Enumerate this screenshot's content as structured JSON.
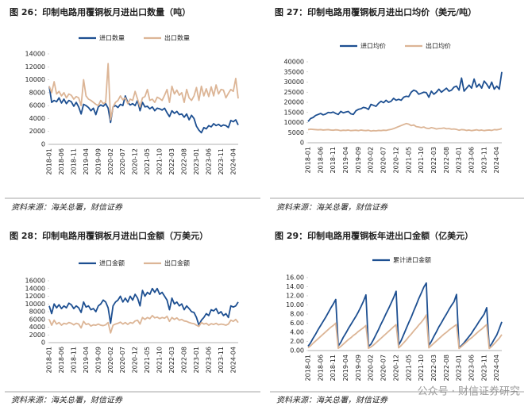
{
  "chart_data": [
    {
      "type": "line",
      "title": "图 26：印制电路用覆铜板月进出口数量（吨）",
      "source": "资料来源：海关总署，财信证券",
      "categories": [
        "2018-01",
        null,
        null,
        null,
        null,
        "2018-06",
        null,
        null,
        null,
        null,
        "2018-11",
        null,
        null,
        null,
        null,
        "2019-04",
        null,
        null,
        null,
        null,
        "2019-09",
        null,
        null,
        null,
        null,
        "2020-02",
        null,
        null,
        null,
        null,
        "2020-07",
        null,
        null,
        null,
        null,
        "2020-12",
        null,
        null,
        null,
        null,
        "2021-05",
        null,
        null,
        null,
        null,
        "2021-10",
        null,
        null,
        null,
        null,
        "2022-03",
        null,
        null,
        null,
        null,
        "2022-08",
        null,
        null,
        null,
        null,
        "2023-01",
        null,
        null,
        null,
        null,
        "2023-06",
        null,
        null,
        null,
        null,
        "2023-11",
        null,
        null,
        null,
        null,
        "2024-04",
        null,
        null
      ],
      "ylim": [
        0,
        14000
      ],
      "yticks": [
        0,
        2000,
        4000,
        6000,
        8000,
        10000,
        12000,
        14000
      ],
      "series": [
        {
          "name": "进口数量",
          "color": "#1d4f91",
          "values": [
            9000,
            6500,
            6800,
            6600,
            7200,
            6400,
            7000,
            6300,
            6800,
            6600,
            5900,
            6500,
            5800,
            4700,
            6200,
            6000,
            5700,
            5200,
            5600,
            4600,
            5800,
            6100,
            5900,
            6300,
            5600,
            3400,
            5800,
            6000,
            5700,
            6200,
            6000,
            7500,
            6500,
            6100,
            6300,
            6000,
            6800,
            5200,
            6500,
            5800,
            5900,
            5500,
            5800,
            5200,
            5600,
            5500,
            5300,
            5600,
            4900,
            4300,
            5200,
            4800,
            5100,
            4600,
            4700,
            4200,
            4700,
            3800,
            4500,
            4000,
            2800,
            2200,
            1800,
            2600,
            2400,
            2900,
            2700,
            3200,
            2900,
            3100,
            2800,
            3000,
            2900,
            2600,
            3700,
            3500,
            3800,
            3000
          ]
        },
        {
          "name": "出口数量",
          "color": "#dcb596",
          "values": [
            9000,
            8000,
            9700,
            7800,
            8200,
            7500,
            8000,
            7200,
            7800,
            7600,
            7000,
            7400,
            7200,
            6000,
            10000,
            7500,
            7000,
            6800,
            6500,
            6200,
            6000,
            6800,
            6300,
            6500,
            12500,
            3800,
            5800,
            6500,
            6800,
            7500,
            6900,
            7200,
            6300,
            7000,
            6800,
            8200,
            7000,
            5800,
            7200,
            7400,
            8500,
            6800,
            7000,
            6500,
            7300,
            7100,
            6800,
            7600,
            8500,
            6500,
            9000,
            7800,
            8400,
            7600,
            8000,
            6500,
            8500,
            7200,
            6800,
            7500,
            8800,
            6800,
            9000,
            7500,
            8600,
            7400,
            8900,
            7500,
            9200,
            7800,
            8500,
            8400,
            7200,
            7900,
            8500,
            8200,
            10200,
            7100
          ]
        }
      ]
    },
    {
      "type": "line",
      "title": "图 27：印制电路用覆铜板月进出口均价（美元/吨）",
      "source": "资料来源：海关总署，财信证券",
      "categories": [
        "2018-01",
        null,
        null,
        null,
        null,
        "2018-06",
        null,
        null,
        null,
        null,
        "2018-11",
        null,
        null,
        null,
        null,
        "2019-04",
        null,
        null,
        null,
        null,
        "2019-09",
        null,
        null,
        null,
        null,
        "2020-02",
        null,
        null,
        null,
        null,
        "2020-07",
        null,
        null,
        null,
        null,
        "2020-12",
        null,
        null,
        null,
        null,
        "2021-05",
        null,
        null,
        null,
        null,
        "2021-10",
        null,
        null,
        null,
        null,
        "2022-03",
        null,
        null,
        null,
        null,
        "2022-08",
        null,
        null,
        null,
        null,
        "2023-01",
        null,
        null,
        null,
        null,
        "2023-06",
        null,
        null,
        null,
        null,
        "2023-11",
        null,
        null,
        null,
        null,
        "2024-04",
        null,
        null
      ],
      "ylim": [
        0,
        40000
      ],
      "yticks": [
        0,
        5000,
        10000,
        15000,
        20000,
        25000,
        30000,
        35000,
        40000
      ],
      "series": [
        {
          "name": "进口均价",
          "color": "#1d4f91",
          "values": [
            10500,
            12000,
            12500,
            13500,
            14000,
            14500,
            13800,
            14200,
            15000,
            14800,
            15200,
            14500,
            14000,
            15500,
            14800,
            15200,
            15500,
            14300,
            14000,
            15800,
            16500,
            16800,
            17500,
            17200,
            16500,
            19000,
            18500,
            18000,
            19500,
            20500,
            19800,
            21000,
            20000,
            20500,
            22000,
            21000,
            21500,
            21000,
            22500,
            23000,
            22800,
            25000,
            26000,
            25500,
            24000,
            24500,
            25000,
            24800,
            22500,
            25500,
            24000,
            25000,
            26500,
            25000,
            26000,
            27000,
            25500,
            26000,
            27500,
            28000,
            26000,
            32000,
            25500,
            27000,
            28500,
            27000,
            31500,
            27500,
            29000,
            27000,
            30500,
            29000,
            27000,
            30000,
            26500,
            28000,
            26500,
            35000
          ]
        },
        {
          "name": "出口均价",
          "color": "#dcb596",
          "values": [
            6500,
            6700,
            6600,
            6500,
            6400,
            6500,
            6300,
            6400,
            6500,
            6300,
            6200,
            6400,
            6300,
            6000,
            6200,
            6100,
            6300,
            6000,
            6100,
            6200,
            6000,
            6300,
            6100,
            6000,
            6200,
            5800,
            6000,
            5900,
            6100,
            6000,
            6200,
            6100,
            6400,
            6600,
            7000,
            7500,
            8000,
            8500,
            9000,
            9500,
            9200,
            8500,
            8800,
            8000,
            7800,
            7500,
            7800,
            7200,
            7000,
            7500,
            7200,
            6800,
            7000,
            7100,
            7300,
            6900,
            7000,
            6700,
            6800,
            6600,
            6200,
            6500,
            6400,
            6100,
            6300,
            6000,
            6200,
            6400,
            6100,
            6300,
            6000,
            6200,
            6300,
            6100,
            6500,
            6400,
            6600,
            7000
          ]
        }
      ]
    },
    {
      "type": "line",
      "title": "图 28：印制电路用覆铜板月进出口金额（万美元）",
      "source": "资料来源：海关总署，财信证券",
      "categories": [
        "2018-01",
        null,
        null,
        null,
        null,
        "2018-06",
        null,
        null,
        null,
        null,
        "2018-11",
        null,
        null,
        null,
        null,
        "2019-04",
        null,
        null,
        null,
        null,
        "2019-09",
        null,
        null,
        null,
        null,
        "2020-02",
        null,
        null,
        null,
        null,
        "2020-07",
        null,
        null,
        null,
        null,
        "2020-12",
        null,
        null,
        null,
        null,
        "2021-05",
        null,
        null,
        null,
        null,
        "2021-10",
        null,
        null,
        null,
        null,
        "2022-03",
        null,
        null,
        null,
        null,
        "2022-08",
        null,
        null,
        null,
        null,
        "2023-01",
        null,
        null,
        null,
        null,
        "2023-06",
        null,
        null,
        null,
        null,
        "2023-11",
        null,
        null,
        null,
        null,
        "2024-04",
        null,
        null
      ],
      "ylim": [
        0,
        16000
      ],
      "yticks": [
        0,
        2000,
        4000,
        6000,
        8000,
        10000,
        12000,
        14000,
        16000
      ],
      "series": [
        {
          "name": "进口金额",
          "color": "#1d4f91",
          "values": [
            9500,
            7500,
            10000,
            9000,
            9800,
            8800,
            9500,
            9000,
            10200,
            9800,
            8800,
            9500,
            9000,
            7800,
            10500,
            9200,
            9500,
            8500,
            8800,
            8000,
            9500,
            10000,
            11000,
            10500,
            9000,
            5000,
            9500,
            10500,
            11000,
            12000,
            10500,
            11500,
            10500,
            12000,
            11000,
            12500,
            11500,
            9500,
            13500,
            12000,
            13000,
            12500,
            14000,
            13000,
            14000,
            12500,
            13000,
            12000,
            11000,
            8500,
            11500,
            10000,
            10500,
            9500,
            10000,
            8500,
            9500,
            8800,
            8000,
            7800,
            6500,
            4500,
            5800,
            6500,
            7500,
            7000,
            8500,
            8200,
            8800,
            7500,
            8000,
            7000,
            7500,
            6500,
            9500,
            9200,
            9500,
            10500
          ]
        },
        {
          "name": "出口金额",
          "color": "#dcb596",
          "values": [
            6000,
            4500,
            5800,
            4800,
            5200,
            4500,
            5000,
            4800,
            5200,
            5000,
            4600,
            5000,
            4800,
            3800,
            5500,
            4700,
            4900,
            4300,
            4600,
            4500,
            4800,
            4500,
            4400,
            4600,
            5200,
            2500,
            4500,
            4800,
            5000,
            5300,
            4800,
            5200,
            4700,
            5200,
            5000,
            5600,
            5800,
            4800,
            6500,
            6000,
            6500,
            6200,
            7000,
            6400,
            6600,
            6200,
            6500,
            6300,
            6800,
            5500,
            6500,
            6000,
            6400,
            5800,
            6000,
            5600,
            5500,
            5200,
            5000,
            4900,
            4500,
            4200,
            5200,
            4800,
            5000,
            4500,
            4900,
            4700,
            5000,
            4600,
            4800,
            4700,
            4500,
            4800,
            5800,
            5500,
            6000,
            5200
          ]
        }
      ]
    },
    {
      "type": "line",
      "title": "图 29：印制电路用覆铜板年进出口金额（亿美元）",
      "source": "资料来源：海关总署，财信证券",
      "categories": [
        "2018-01",
        null,
        null,
        null,
        null,
        "2018-06",
        null,
        null,
        null,
        null,
        "2018-11",
        null,
        null,
        null,
        null,
        "2019-04",
        null,
        null,
        null,
        null,
        "2019-09",
        null,
        null,
        null,
        null,
        "2020-02",
        null,
        null,
        null,
        null,
        "2020-07",
        null,
        null,
        null,
        null,
        "2020-12",
        null,
        null,
        null,
        null,
        "2021-05",
        null,
        null,
        null,
        null,
        "2021-10",
        null,
        null,
        null,
        null,
        "2022-03",
        null,
        null,
        null,
        null,
        "2022-08",
        null,
        null,
        null,
        null,
        "2023-01",
        null,
        null,
        null,
        null,
        "2023-06",
        null,
        null,
        null,
        null,
        "2023-11",
        null,
        null,
        null,
        null,
        "2024-04",
        null,
        null
      ],
      "ylim": [
        0,
        16
      ],
      "yticks": [
        {
          "value": 0,
          "label": "0.00"
        },
        {
          "value": 2,
          "label": "2.00"
        },
        {
          "value": 4,
          "label": "4.00"
        },
        {
          "value": 6,
          "label": "6.00"
        },
        {
          "value": 8,
          "label": "8.00"
        },
        {
          "value": 10,
          "label": "10.00"
        },
        {
          "value": 12,
          "label": "12.00"
        },
        {
          "value": 14,
          "label": "14.00"
        },
        {
          "value": 16,
          "label": "16.00"
        }
      ],
      "series": [
        {
          "name": "累计进口金额",
          "color": "#1d4f91",
          "values": [
            0.95,
            1.7,
            2.7,
            3.6,
            4.6,
            5.5,
            6.4,
            7.3,
            8.3,
            9.3,
            10.2,
            11.2,
            1.0,
            1.8,
            2.9,
            3.8,
            4.8,
            5.7,
            6.6,
            7.5,
            8.5,
            9.6,
            10.8,
            12.2,
            0.9,
            1.4,
            2.4,
            3.5,
            4.6,
            5.8,
            6.9,
            8.1,
            9.2,
            10.4,
            11.6,
            13.0,
            1.2,
            2.2,
            3.5,
            4.8,
            6.1,
            7.3,
            8.7,
            10.0,
            11.4,
            12.6,
            13.9,
            14.8,
            1.1,
            2.0,
            3.1,
            4.1,
            5.2,
            6.1,
            7.1,
            8.0,
            9.0,
            9.9,
            10.7,
            12.3,
            0.7,
            1.1,
            1.7,
            2.4,
            3.1,
            3.8,
            4.7,
            5.5,
            6.4,
            7.2,
            8.0,
            9.4,
            0.8,
            1.5,
            2.5,
            3.4,
            4.8,
            6.3
          ]
        },
        {
          "color": "#dcb596",
          "values": [
            0.6,
            1.05,
            1.6,
            2.1,
            2.6,
            3.1,
            3.6,
            4.1,
            4.6,
            5.1,
            5.5,
            6.0,
            0.5,
            0.9,
            1.4,
            1.9,
            2.4,
            2.8,
            3.3,
            3.7,
            4.2,
            4.6,
            5.0,
            5.5,
            0.5,
            0.8,
            1.2,
            1.7,
            2.2,
            2.7,
            3.2,
            3.7,
            4.2,
            4.7,
            5.2,
            5.7,
            0.6,
            1.1,
            1.7,
            2.3,
            3.0,
            3.6,
            4.3,
            4.9,
            5.6,
            6.2,
            6.9,
            7.8,
            0.6,
            1.1,
            1.6,
            2.1,
            2.6,
            3.1,
            3.6,
            4.0,
            4.5,
            4.9,
            5.3,
            5.7,
            0.45,
            0.9,
            1.4,
            1.9,
            2.4,
            2.8,
            3.3,
            3.8,
            4.3,
            4.7,
            5.2,
            5.7,
            0.45,
            0.9,
            1.5,
            2.1,
            2.7,
            3.5
          ]
        }
      ]
    }
  ],
  "watermark": "公众号 · 财信证券研究"
}
